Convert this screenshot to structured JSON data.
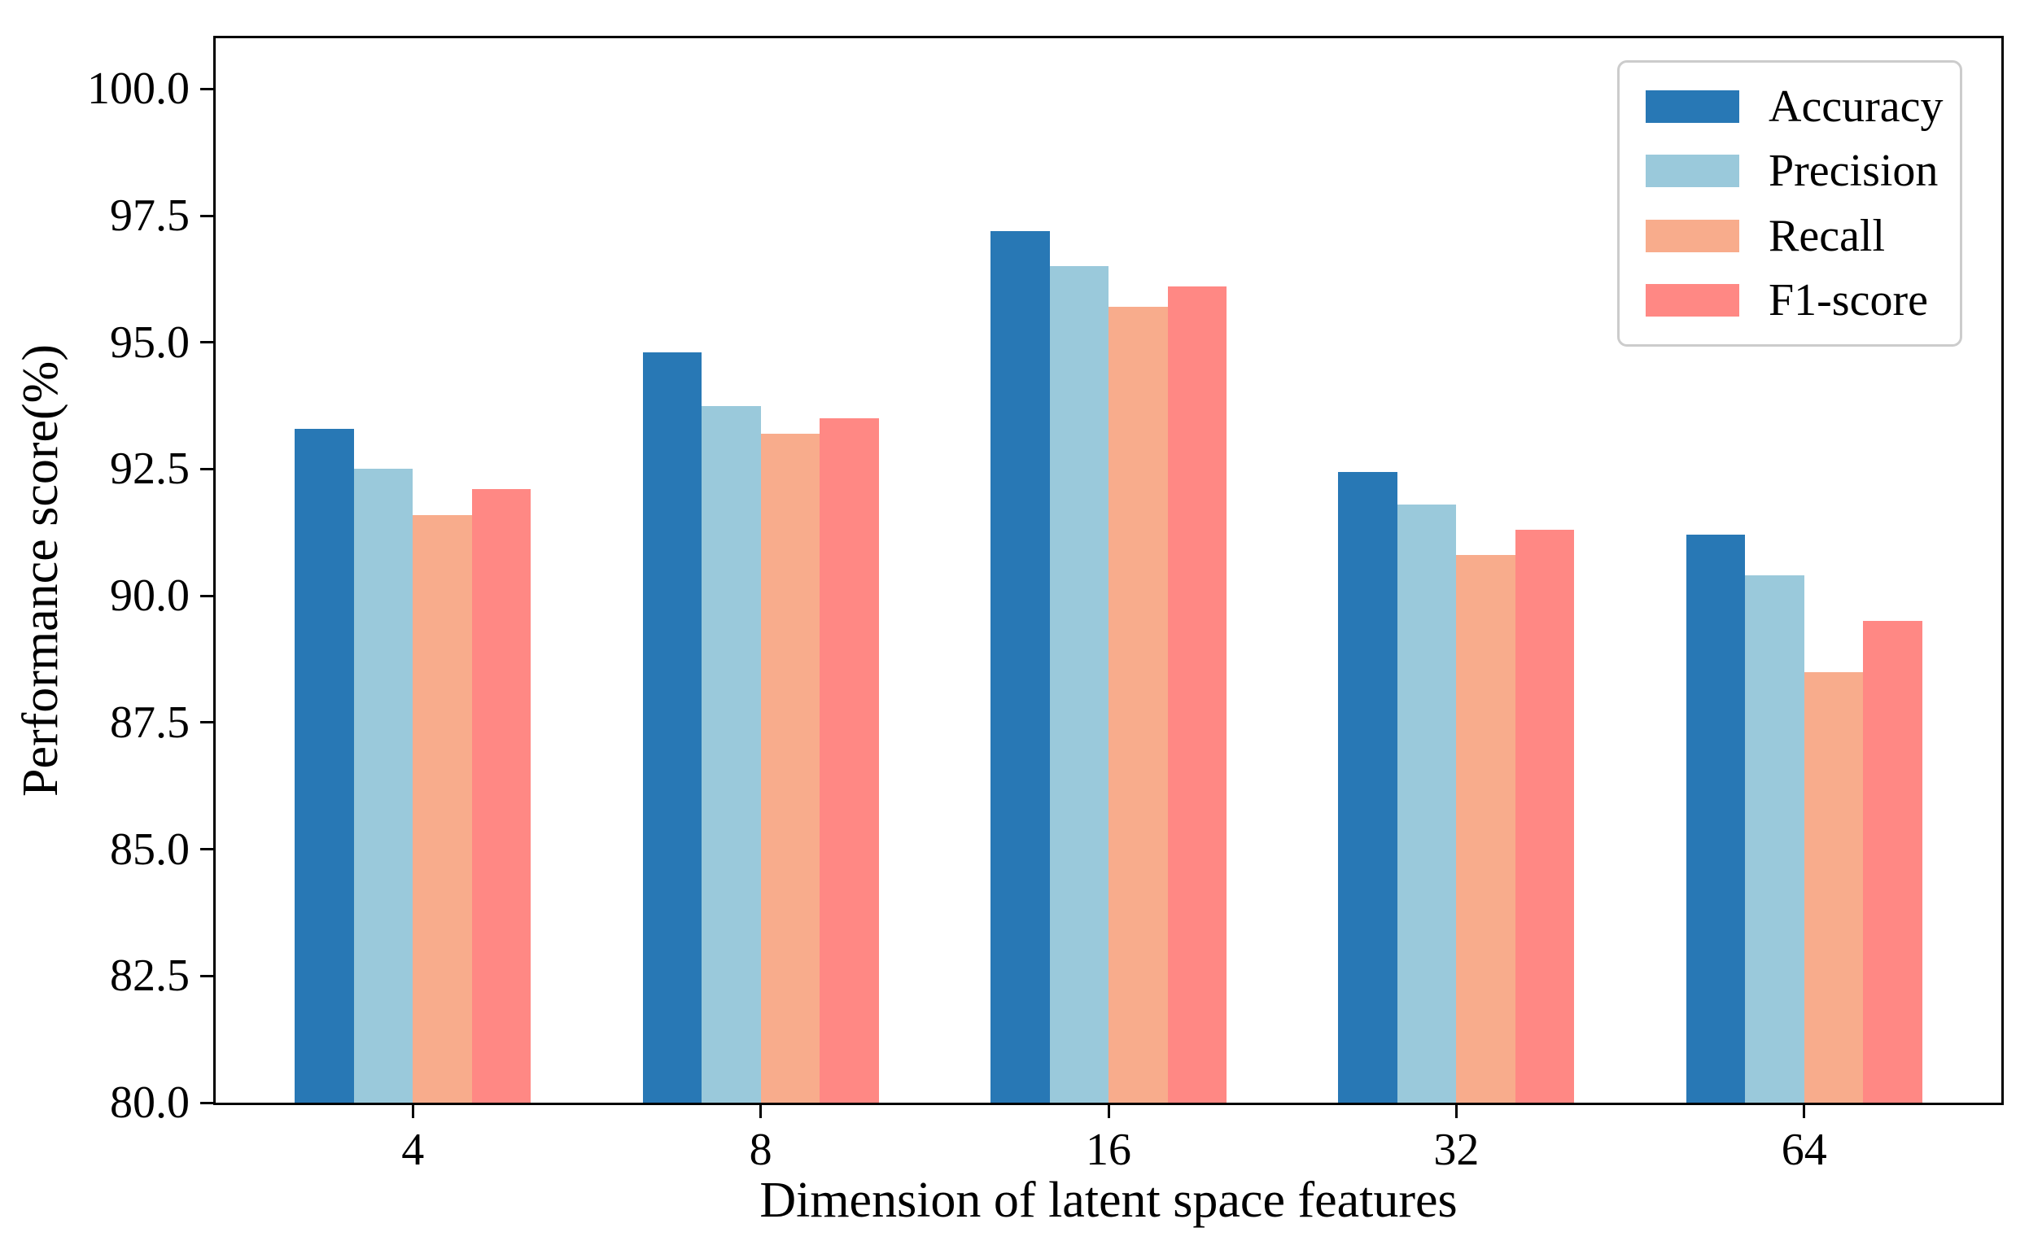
{
  "chart_data": {
    "type": "bar",
    "title": "",
    "xlabel": "Dimension of latent space features",
    "ylabel": "Performance score(%)",
    "categories": [
      "4",
      "8",
      "16",
      "32",
      "64"
    ],
    "series": [
      {
        "name": "Accuracy",
        "color": "#2878B5",
        "values": [
          93.3,
          94.8,
          97.2,
          92.45,
          91.2
        ]
      },
      {
        "name": "Precision",
        "color": "#9AC9DB",
        "values": [
          92.5,
          93.75,
          96.5,
          91.8,
          90.4
        ]
      },
      {
        "name": "Recall",
        "color": "#F8AC8C",
        "values": [
          91.6,
          93.2,
          95.7,
          90.8,
          88.5
        ]
      },
      {
        "name": "F1-score",
        "color": "#FF8884",
        "values": [
          92.1,
          93.5,
          96.1,
          91.3,
          89.5
        ]
      }
    ],
    "ylim": [
      80,
      101
    ],
    "xlim": [
      -0.567,
      4.567
    ],
    "yticks": [
      100.0,
      97.5,
      95.0,
      92.5,
      90.0,
      87.5,
      85.0,
      82.5,
      80.0
    ],
    "ytick_labels": [
      "100.0",
      "97.5",
      "95.0",
      "92.5",
      "90.0",
      "87.5",
      "85.0",
      "82.5",
      "80.0"
    ],
    "legend_position": "upper right",
    "grid": false,
    "axis_color": "#000000",
    "background_color": "#ffffff"
  }
}
